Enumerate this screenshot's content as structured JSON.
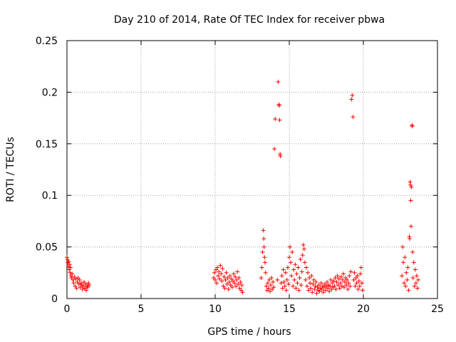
{
  "chart_data": {
    "type": "scatter",
    "title": "Day 210 of 2014, Rate Of TEC Index for receiver pbwa",
    "xlabel": "GPS time / hours",
    "ylabel": "ROTI / TECUs",
    "xlim": [
      0,
      25
    ],
    "ylim": [
      0,
      0.25
    ],
    "xticks": [
      0,
      5,
      10,
      15,
      20,
      25
    ],
    "xtick_labels": [
      "0",
      "5",
      "10",
      "15",
      "20",
      "25"
    ],
    "yticks": [
      0,
      0.05,
      0.1,
      0.15,
      0.2,
      0.25
    ],
    "ytick_labels": [
      "0",
      "0.05",
      "0.1",
      "0.15",
      "0.2",
      "0.25"
    ],
    "grid": true,
    "marker": "+",
    "marker_color": "#ff0000",
    "series": [
      {
        "name": "ROTI",
        "points": [
          [
            0.0,
            0.04
          ],
          [
            0.03,
            0.038
          ],
          [
            0.06,
            0.035
          ],
          [
            0.09,
            0.031
          ],
          [
            0.12,
            0.036
          ],
          [
            0.15,
            0.028
          ],
          [
            0.18,
            0.033
          ],
          [
            0.21,
            0.025
          ],
          [
            0.24,
            0.03
          ],
          [
            0.27,
            0.022
          ],
          [
            0.3,
            0.02
          ],
          [
            0.35,
            0.024
          ],
          [
            0.4,
            0.018
          ],
          [
            0.45,
            0.015
          ],
          [
            0.5,
            0.021
          ],
          [
            0.55,
            0.012
          ],
          [
            0.6,
            0.019
          ],
          [
            0.65,
            0.01
          ],
          [
            0.7,
            0.016
          ],
          [
            0.75,
            0.02
          ],
          [
            0.8,
            0.014
          ],
          [
            0.85,
            0.018
          ],
          [
            0.9,
            0.011
          ],
          [
            0.95,
            0.015
          ],
          [
            1.0,
            0.013
          ],
          [
            1.05,
            0.009
          ],
          [
            1.1,
            0.012
          ],
          [
            1.15,
            0.016
          ],
          [
            1.2,
            0.01
          ],
          [
            1.25,
            0.014
          ],
          [
            1.3,
            0.008
          ],
          [
            1.35,
            0.012
          ],
          [
            1.4,
            0.011
          ],
          [
            1.45,
            0.015
          ],
          [
            1.5,
            0.013
          ],
          [
            9.9,
            0.02
          ],
          [
            9.95,
            0.025
          ],
          [
            10.0,
            0.018
          ],
          [
            10.05,
            0.028
          ],
          [
            10.1,
            0.015
          ],
          [
            10.15,
            0.03
          ],
          [
            10.2,
            0.022
          ],
          [
            10.25,
            0.026
          ],
          [
            10.3,
            0.019
          ],
          [
            10.35,
            0.032
          ],
          [
            10.4,
            0.024
          ],
          [
            10.45,
            0.017
          ],
          [
            10.5,
            0.029
          ],
          [
            10.55,
            0.012
          ],
          [
            10.6,
            0.021
          ],
          [
            10.65,
            0.01
          ],
          [
            10.7,
            0.018
          ],
          [
            10.75,
            0.025
          ],
          [
            10.8,
            0.014
          ],
          [
            10.85,
            0.02
          ],
          [
            10.9,
            0.009
          ],
          [
            10.95,
            0.016
          ],
          [
            11.0,
            0.022
          ],
          [
            11.05,
            0.013
          ],
          [
            11.1,
            0.019
          ],
          [
            11.15,
            0.011
          ],
          [
            11.2,
            0.017
          ],
          [
            11.25,
            0.024
          ],
          [
            11.3,
            0.015
          ],
          [
            11.35,
            0.021
          ],
          [
            11.4,
            0.012
          ],
          [
            11.45,
            0.018
          ],
          [
            11.5,
            0.026
          ],
          [
            11.55,
            0.014
          ],
          [
            11.6,
            0.02
          ],
          [
            11.65,
            0.01
          ],
          [
            11.7,
            0.016
          ],
          [
            11.75,
            0.008
          ],
          [
            11.8,
            0.013
          ],
          [
            11.85,
            0.006
          ],
          [
            13.1,
            0.02
          ],
          [
            13.15,
            0.03
          ],
          [
            13.2,
            0.045
          ],
          [
            13.25,
            0.066
          ],
          [
            13.28,
            0.058
          ],
          [
            13.3,
            0.05
          ],
          [
            13.33,
            0.04
          ],
          [
            13.36,
            0.035
          ],
          [
            13.4,
            0.025
          ],
          [
            13.45,
            0.012
          ],
          [
            13.5,
            0.008
          ],
          [
            13.55,
            0.015
          ],
          [
            13.6,
            0.01
          ],
          [
            13.65,
            0.018
          ],
          [
            13.7,
            0.007
          ],
          [
            13.75,
            0.013
          ],
          [
            13.8,
            0.02
          ],
          [
            13.85,
            0.009
          ],
          [
            13.9,
            0.016
          ],
          [
            13.95,
            0.011
          ],
          [
            14.0,
            0.145
          ],
          [
            14.05,
            0.174
          ],
          [
            14.2,
            0.018
          ],
          [
            14.25,
            0.21
          ],
          [
            14.3,
            0.188
          ],
          [
            14.32,
            0.187
          ],
          [
            14.35,
            0.173
          ],
          [
            14.38,
            0.14
          ],
          [
            14.4,
            0.138
          ],
          [
            14.45,
            0.015
          ],
          [
            14.5,
            0.022
          ],
          [
            14.55,
            0.01
          ],
          [
            14.6,
            0.028
          ],
          [
            14.65,
            0.016
          ],
          [
            14.7,
            0.012
          ],
          [
            14.75,
            0.025
          ],
          [
            14.8,
            0.008
          ],
          [
            14.85,
            0.018
          ],
          [
            14.9,
            0.03
          ],
          [
            14.95,
            0.014
          ],
          [
            15.0,
            0.04
          ],
          [
            15.05,
            0.05
          ],
          [
            15.1,
            0.035
          ],
          [
            15.15,
            0.022
          ],
          [
            15.2,
            0.045
          ],
          [
            15.25,
            0.012
          ],
          [
            15.3,
            0.028
          ],
          [
            15.35,
            0.018
          ],
          [
            15.4,
            0.033
          ],
          [
            15.45,
            0.01
          ],
          [
            15.5,
            0.024
          ],
          [
            15.55,
            0.015
          ],
          [
            15.6,
            0.03
          ],
          [
            15.65,
            0.008
          ],
          [
            15.7,
            0.02
          ],
          [
            15.75,
            0.038
          ],
          [
            15.8,
            0.013
          ],
          [
            15.85,
            0.026
          ],
          [
            15.9,
            0.042
          ],
          [
            15.95,
            0.052
          ],
          [
            16.0,
            0.048
          ],
          [
            16.05,
            0.035
          ],
          [
            16.1,
            0.018
          ],
          [
            16.15,
            0.03
          ],
          [
            16.2,
            0.012
          ],
          [
            16.25,
            0.025
          ],
          [
            16.3,
            0.008
          ],
          [
            16.35,
            0.02
          ],
          [
            16.4,
            0.015
          ],
          [
            16.45,
            0.01
          ],
          [
            16.5,
            0.022
          ],
          [
            16.55,
            0.006
          ],
          [
            16.6,
            0.014
          ],
          [
            16.65,
            0.018
          ],
          [
            16.7,
            0.009
          ],
          [
            16.75,
            0.012
          ],
          [
            16.8,
            0.016
          ],
          [
            16.85,
            0.005
          ],
          [
            16.9,
            0.011
          ],
          [
            16.95,
            0.008
          ],
          [
            17.0,
            0.013
          ],
          [
            17.05,
            0.007
          ],
          [
            17.1,
            0.01
          ],
          [
            17.15,
            0.015
          ],
          [
            17.2,
            0.009
          ],
          [
            17.25,
            0.012
          ],
          [
            17.3,
            0.006
          ],
          [
            17.35,
            0.011
          ],
          [
            17.4,
            0.014
          ],
          [
            17.45,
            0.008
          ],
          [
            17.5,
            0.012
          ],
          [
            17.55,
            0.016
          ],
          [
            17.6,
            0.01
          ],
          [
            17.65,
            0.013
          ],
          [
            17.7,
            0.007
          ],
          [
            17.75,
            0.012
          ],
          [
            17.8,
            0.018
          ],
          [
            17.85,
            0.009
          ],
          [
            17.9,
            0.015
          ],
          [
            17.95,
            0.011
          ],
          [
            18.0,
            0.017
          ],
          [
            18.05,
            0.012
          ],
          [
            18.1,
            0.02
          ],
          [
            18.15,
            0.009
          ],
          [
            18.2,
            0.016
          ],
          [
            18.25,
            0.022
          ],
          [
            18.3,
            0.013
          ],
          [
            18.35,
            0.019
          ],
          [
            18.4,
            0.01
          ],
          [
            18.45,
            0.015
          ],
          [
            18.5,
            0.021
          ],
          [
            18.55,
            0.012
          ],
          [
            18.6,
            0.018
          ],
          [
            18.65,
            0.024
          ],
          [
            18.7,
            0.011
          ],
          [
            18.75,
            0.016
          ],
          [
            18.8,
            0.02
          ],
          [
            18.85,
            0.013
          ],
          [
            18.9,
            0.018
          ],
          [
            18.95,
            0.009
          ],
          [
            19.0,
            0.015
          ],
          [
            19.05,
            0.022
          ],
          [
            19.1,
            0.012
          ],
          [
            19.15,
            0.026
          ],
          [
            19.2,
            0.193
          ],
          [
            19.25,
            0.197
          ],
          [
            19.3,
            0.176
          ],
          [
            19.35,
            0.018
          ],
          [
            19.4,
            0.025
          ],
          [
            19.45,
            0.012
          ],
          [
            19.5,
            0.02
          ],
          [
            19.55,
            0.015
          ],
          [
            19.6,
            0.022
          ],
          [
            19.65,
            0.009
          ],
          [
            19.7,
            0.017
          ],
          [
            19.75,
            0.012
          ],
          [
            19.8,
            0.024
          ],
          [
            19.85,
            0.03
          ],
          [
            19.9,
            0.015
          ],
          [
            19.95,
            0.008
          ],
          [
            22.6,
            0.022
          ],
          [
            22.65,
            0.05
          ],
          [
            22.7,
            0.035
          ],
          [
            22.75,
            0.015
          ],
          [
            22.8,
            0.04
          ],
          [
            22.85,
            0.012
          ],
          [
            22.9,
            0.025
          ],
          [
            22.95,
            0.018
          ],
          [
            23.0,
            0.03
          ],
          [
            23.05,
            0.008
          ],
          [
            23.1,
            0.06
          ],
          [
            23.12,
            0.058
          ],
          [
            23.15,
            0.113
          ],
          [
            23.18,
            0.11
          ],
          [
            23.2,
            0.095
          ],
          [
            23.22,
            0.07
          ],
          [
            23.25,
            0.108
          ],
          [
            23.28,
            0.168
          ],
          [
            23.3,
            0.167
          ],
          [
            23.32,
            0.045
          ],
          [
            23.35,
            0.02
          ],
          [
            23.4,
            0.035
          ],
          [
            23.45,
            0.012
          ],
          [
            23.5,
            0.028
          ],
          [
            23.55,
            0.015
          ],
          [
            23.6,
            0.022
          ],
          [
            23.65,
            0.01
          ],
          [
            23.7,
            0.018
          ]
        ]
      }
    ]
  }
}
